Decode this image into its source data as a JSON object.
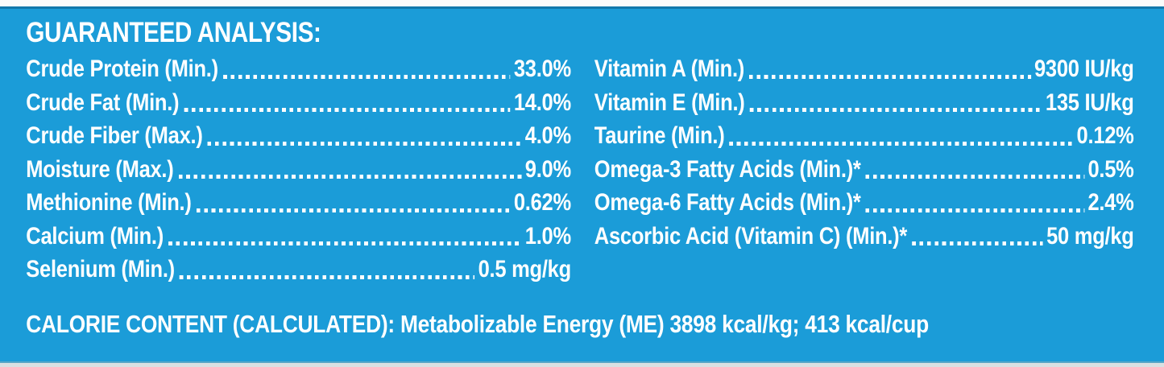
{
  "colors": {
    "background": "#1b9cd8",
    "text": "#ffffff",
    "top_edge": "#fbfbfb",
    "top_rule": "#1278ab",
    "bottom_edge": "#d9e0e2"
  },
  "panel": {
    "title": "GUARANTEED ANALYSIS:",
    "left_rows": [
      {
        "label": "Crude Protein (Min.)",
        "value": "33.0%"
      },
      {
        "label": "Crude Fat (Min.)",
        "value": "14.0%"
      },
      {
        "label": "Crude Fiber (Max.)",
        "value": "4.0%"
      },
      {
        "label": "Moisture (Max.)",
        "value": "9.0%"
      },
      {
        "label": "Methionine (Min.)",
        "value": "0.62%"
      },
      {
        "label": "Calcium (Min.)",
        "value": "1.0%"
      },
      {
        "label": "Selenium (Min.)",
        "value": "0.5 mg/kg"
      }
    ],
    "right_rows": [
      {
        "label": "Vitamin A (Min.)",
        "value": "9300 IU/kg"
      },
      {
        "label": "Vitamin E (Min.)",
        "value": "135 IU/kg"
      },
      {
        "label": "Taurine (Min.)",
        "value": "0.12%"
      },
      {
        "label": "Omega-3 Fatty Acids (Min.)*",
        "value": "0.5%"
      },
      {
        "label": "Omega-6 Fatty Acids (Min.)*",
        "value": "2.4%"
      },
      {
        "label": "Ascorbic Acid (Vitamin C) (Min.)*",
        "value": "50 mg/kg"
      }
    ],
    "calorie_line": "CALORIE CONTENT (CALCULATED): Metabolizable Energy (ME) 3898 kcal/kg; 413 kcal/cup"
  }
}
